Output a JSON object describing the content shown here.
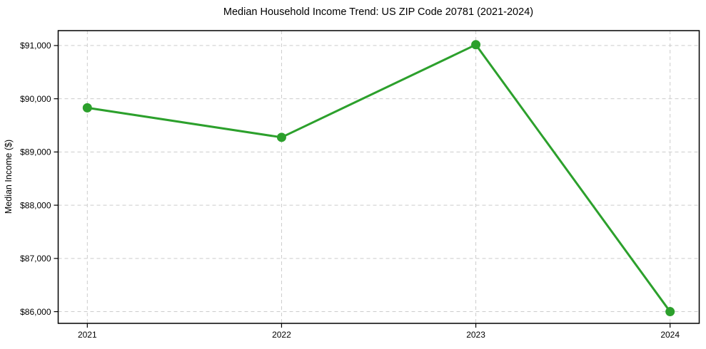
{
  "chart_data": {
    "type": "line",
    "title": "Median Household Income Trend: US ZIP Code 20781 (2021-2024)",
    "xlabel": "",
    "ylabel": "Median Income ($)",
    "x": [
      2021,
      2022,
      2023,
      2024
    ],
    "x_tick_labels": [
      "2021",
      "2022",
      "2023",
      "2024"
    ],
    "y": [
      89830,
      89275,
      91015,
      86000
    ],
    "y_ticks": [
      86000,
      87000,
      88000,
      89000,
      90000,
      91000
    ],
    "y_tick_labels": [
      "$86,000",
      "$87,000",
      "$88,000",
      "$89,000",
      "$90,000",
      "$91,000"
    ],
    "xlim": [
      2020.85,
      2024.15
    ],
    "ylim": [
      85780,
      91280
    ],
    "grid": true,
    "legend": false,
    "marker": "circle",
    "line_color": "#2ca02c",
    "marker_color": "#2ca02c",
    "grid_color": "#cccccc",
    "spine_color": "#000000",
    "background_color": "#ffffff",
    "text_color": "#000000"
  }
}
